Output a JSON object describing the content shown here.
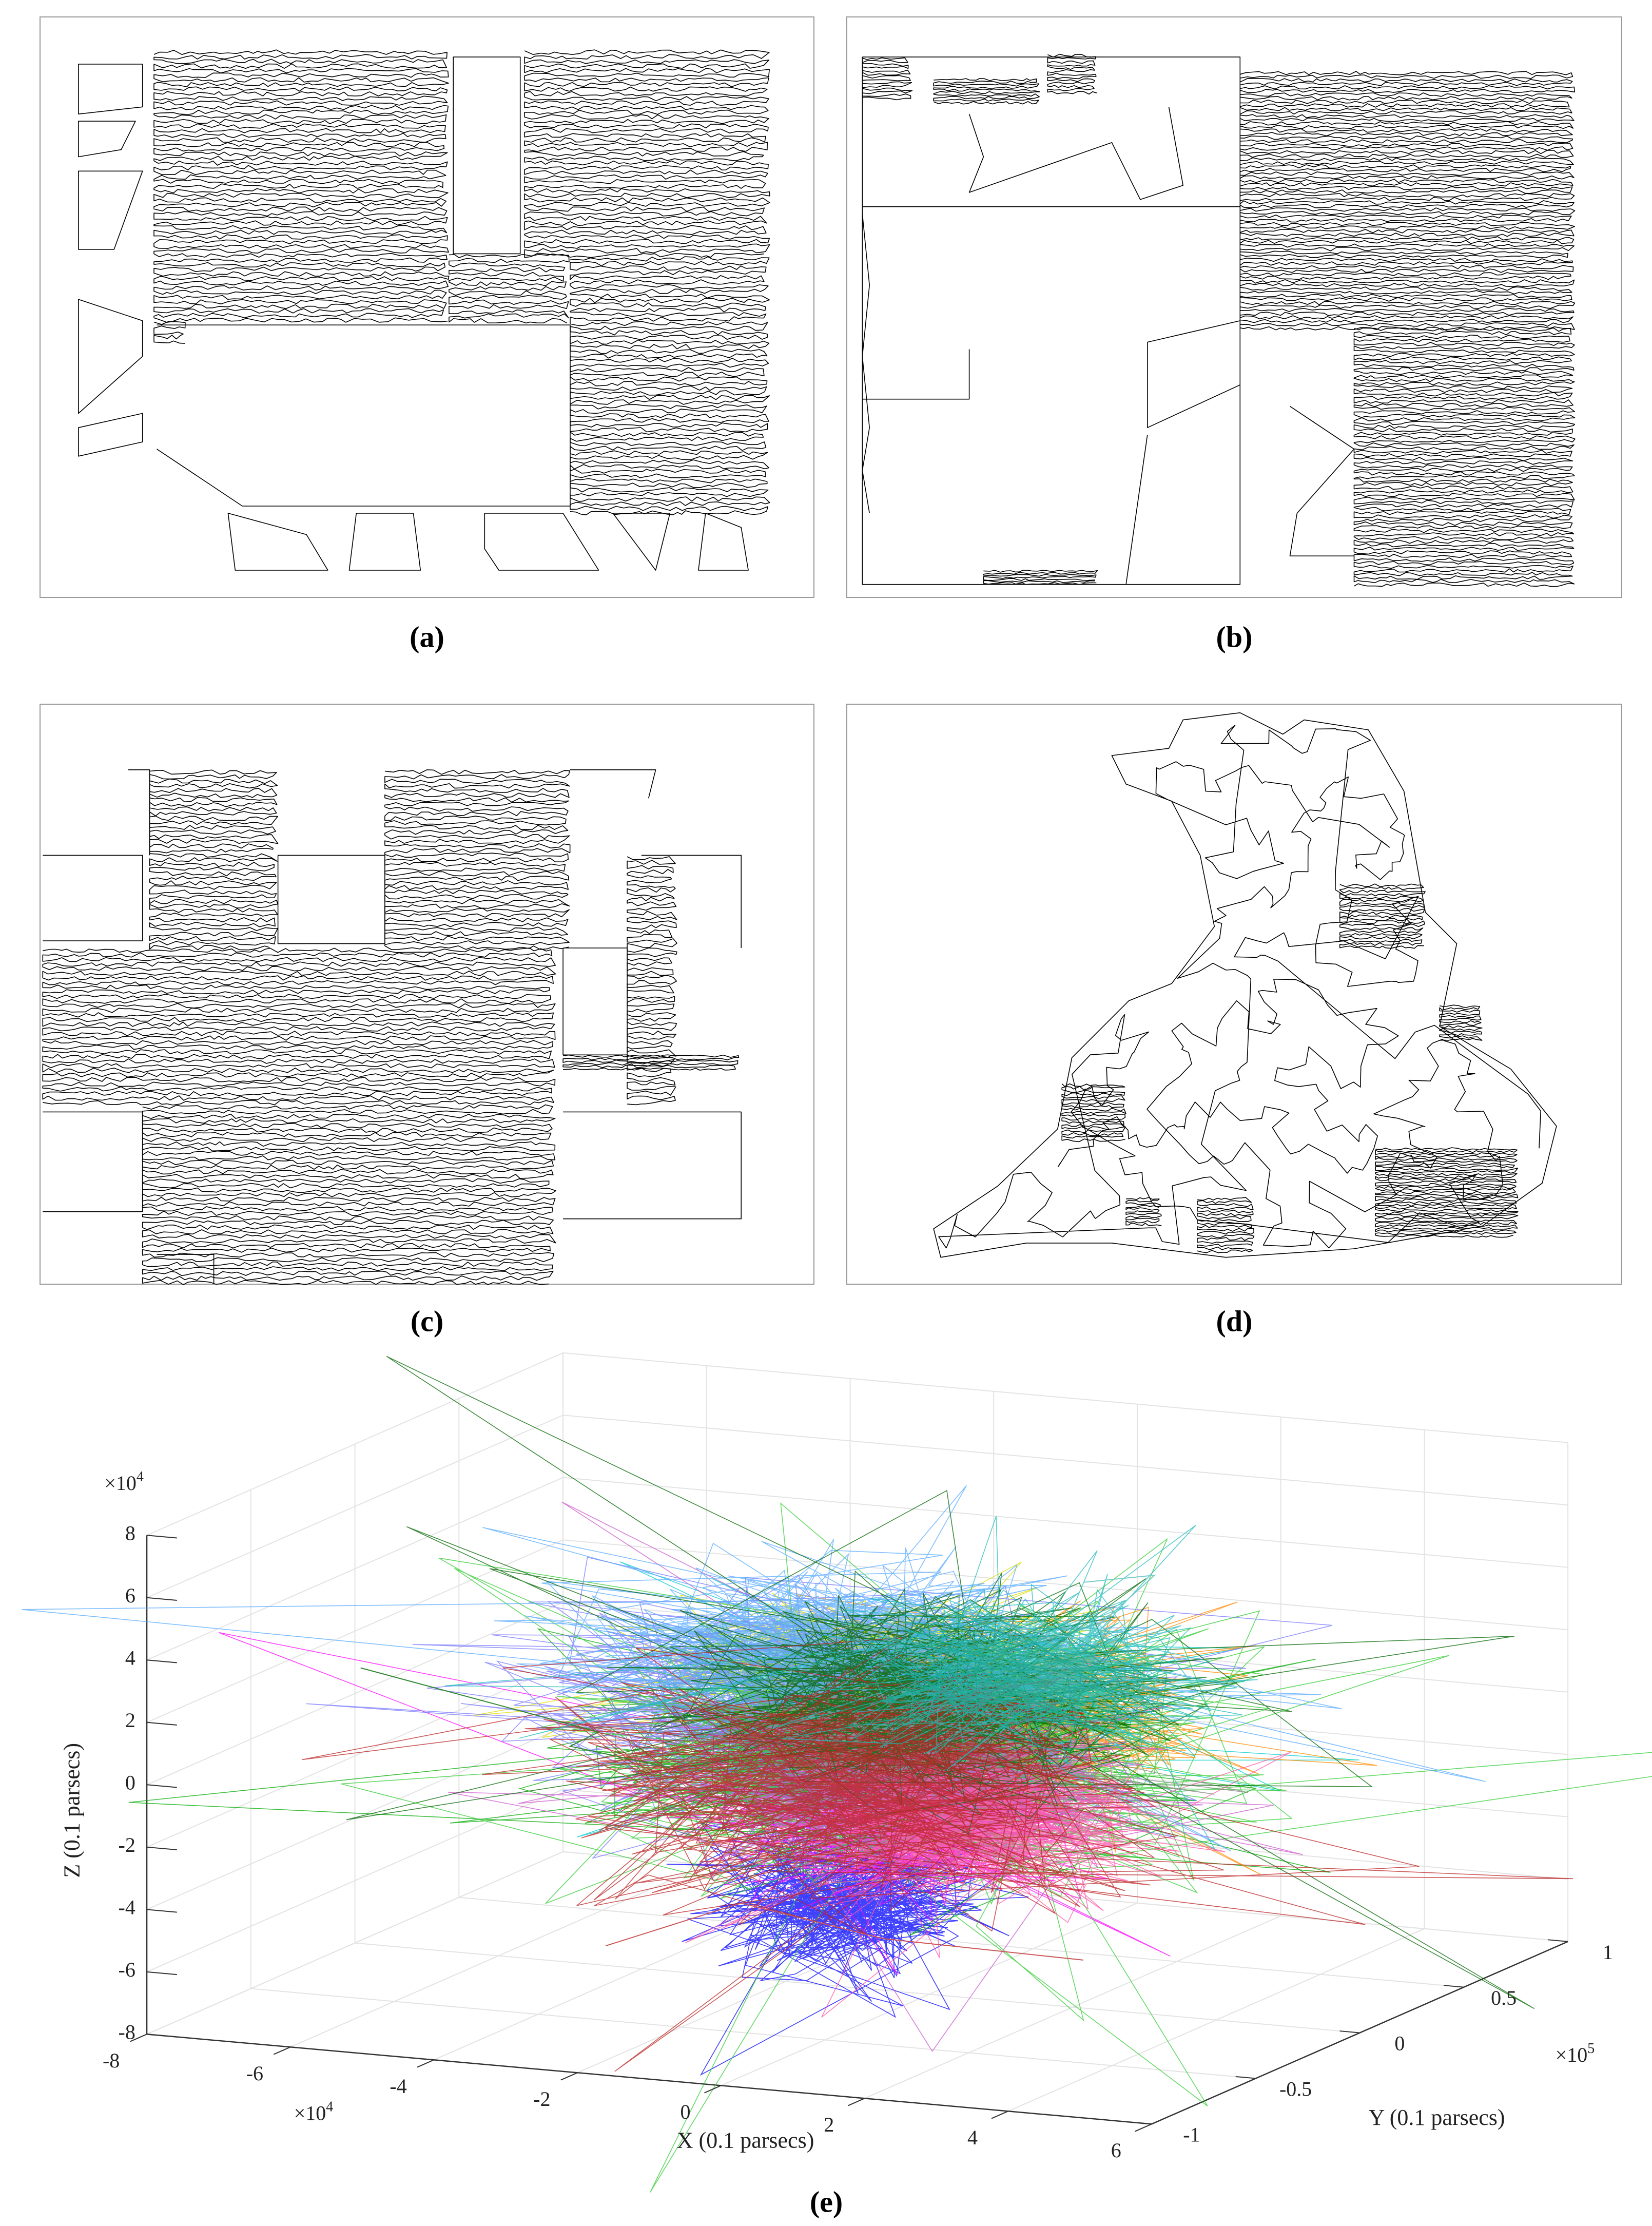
{
  "panels": [
    {
      "caption": "(a)"
    },
    {
      "caption": "(b)"
    },
    {
      "caption": "(c)"
    },
    {
      "caption": "(d)"
    },
    {
      "caption": "(e)"
    }
  ],
  "chart_data": {
    "type": "line3d",
    "xlabel": "X (0.1 parsecs)",
    "ylabel": "Y (0.1 parsecs)",
    "zlabel": "Z (0.1 parsecs)",
    "x_multiplier": {
      "base": "×10",
      "exponent": "4"
    },
    "y_multiplier": {
      "base": "×10",
      "exponent": "5"
    },
    "z_multiplier": {
      "base": "×10",
      "exponent": "4"
    },
    "xlim": [
      -8,
      6
    ],
    "xticks": [
      -8,
      -6,
      -4,
      -2,
      0,
      2,
      4,
      6
    ],
    "ylim": [
      -1,
      1
    ],
    "yticks": [
      -1,
      -0.5,
      0,
      0.5,
      1
    ],
    "zlim": [
      -8,
      8
    ],
    "zticks": [
      -8,
      -6,
      -4,
      -2,
      0,
      2,
      4,
      6,
      8
    ],
    "grid": true
  }
}
